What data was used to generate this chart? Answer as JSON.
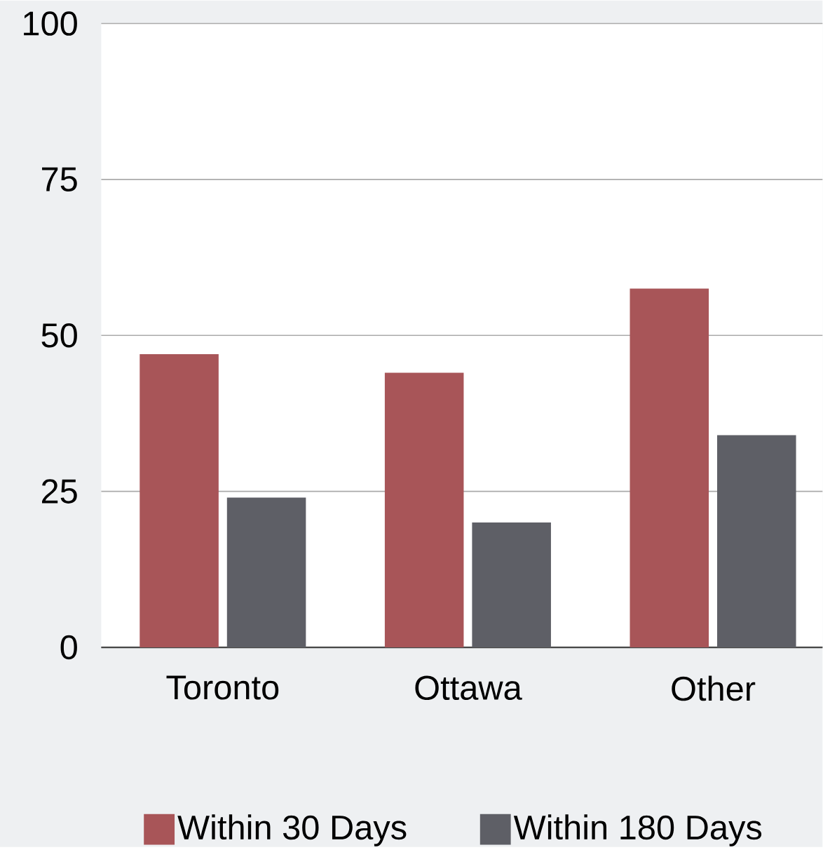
{
  "chart_data": {
    "type": "bar",
    "categories": [
      "Toronto",
      "Ottawa",
      "Other"
    ],
    "series": [
      {
        "name": "Within 30 Days",
        "color": "#a85558",
        "values": [
          47,
          44,
          57.5
        ]
      },
      {
        "name": "Within 180 Days",
        "color": "#5e5f66",
        "values": [
          24,
          20,
          34
        ]
      }
    ],
    "ylim": [
      0,
      100
    ],
    "yticks": [
      0,
      25,
      50,
      75,
      100
    ],
    "grid": "y",
    "legend": "bottom"
  }
}
